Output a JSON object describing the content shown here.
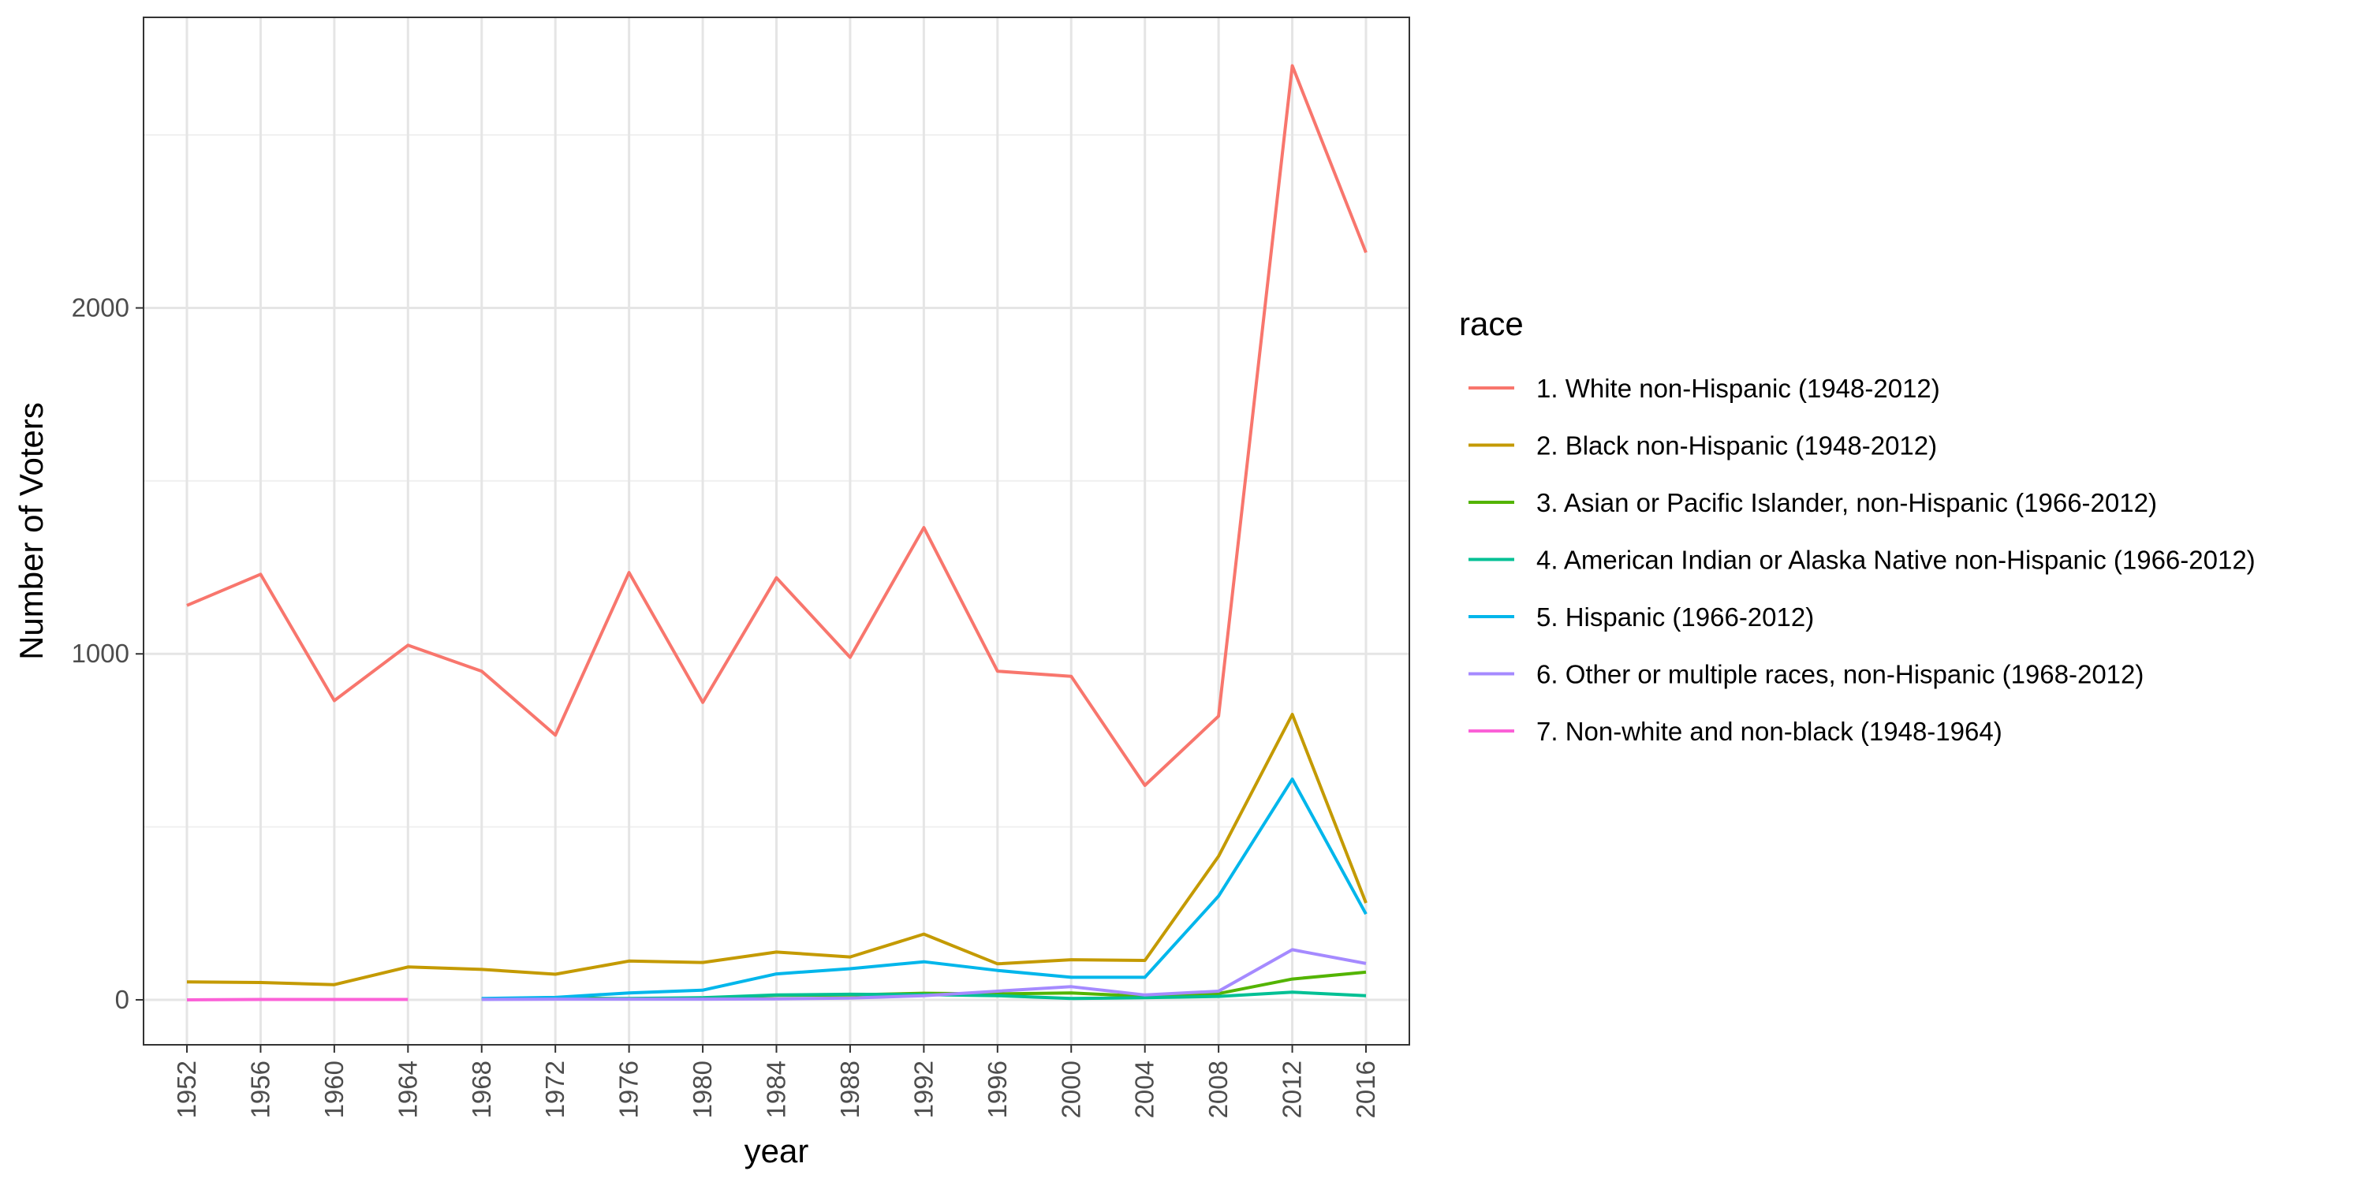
{
  "chart_data": {
    "type": "line",
    "xlabel": "year",
    "ylabel": "Number of Voters",
    "x": [
      1952,
      1956,
      1960,
      1964,
      1968,
      1972,
      1976,
      1980,
      1984,
      1988,
      1992,
      1996,
      2000,
      2004,
      2008,
      2012,
      2016
    ],
    "x_ticks": [
      "1952",
      "1956",
      "1960",
      "1964",
      "1968",
      "1972",
      "1976",
      "1980",
      "1984",
      "1988",
      "1992",
      "1996",
      "2000",
      "2004",
      "2008",
      "2012",
      "2016"
    ],
    "y_ticks": [
      0,
      1000,
      2000
    ],
    "y_tick_labels": [
      "0",
      "1000",
      "2000"
    ],
    "ylim": [
      -130,
      2840
    ],
    "grid": true,
    "legend": {
      "title": "race",
      "placement": "right"
    },
    "series": [
      {
        "name": "1. White non-Hispanic (1948-2012)",
        "color": "#F8766D",
        "values": [
          1140,
          1230,
          865,
          1025,
          950,
          765,
          1235,
          860,
          1220,
          990,
          1365,
          950,
          935,
          620,
          820,
          2700,
          2160
        ]
      },
      {
        "name": "2. Black non-Hispanic (1948-2012)",
        "color": "#C49A00",
        "values": [
          52,
          50,
          44,
          95,
          88,
          74,
          112,
          108,
          138,
          124,
          190,
          104,
          116,
          114,
          415,
          825,
          280
        ]
      },
      {
        "name": "3. Asian or Pacific Islander, non-Hispanic (1966-2012)",
        "color": "#53B400",
        "values": [
          null,
          null,
          null,
          null,
          3,
          6,
          3,
          4,
          13,
          14,
          19,
          17,
          20,
          10,
          18,
          60,
          80
        ]
      },
      {
        "name": "4. American Indian or Alaska Native non-Hispanic (1966-2012)",
        "color": "#00C094",
        "values": [
          null,
          null,
          null,
          null,
          2,
          3,
          4,
          6,
          14,
          16,
          15,
          12,
          4,
          6,
          10,
          22,
          12
        ]
      },
      {
        "name": "5. Hispanic (1966-2012)",
        "color": "#00B6EB",
        "values": [
          null,
          null,
          null,
          null,
          4,
          7,
          20,
          28,
          75,
          90,
          110,
          85,
          65,
          65,
          300,
          638,
          248
        ]
      },
      {
        "name": "6. Other or multiple races, non-Hispanic (1968-2012)",
        "color": "#A58AFF",
        "values": [
          null,
          null,
          null,
          null,
          1,
          2,
          2,
          2,
          3,
          5,
          12,
          25,
          38,
          14,
          25,
          145,
          105
        ]
      },
      {
        "name": "7. Non-white and non-black (1948-1964)",
        "color": "#FB61D7",
        "values": [
          0,
          1,
          1,
          1,
          null,
          null,
          null,
          null,
          null,
          null,
          null,
          null,
          null,
          null,
          null,
          null,
          null
        ]
      }
    ]
  }
}
